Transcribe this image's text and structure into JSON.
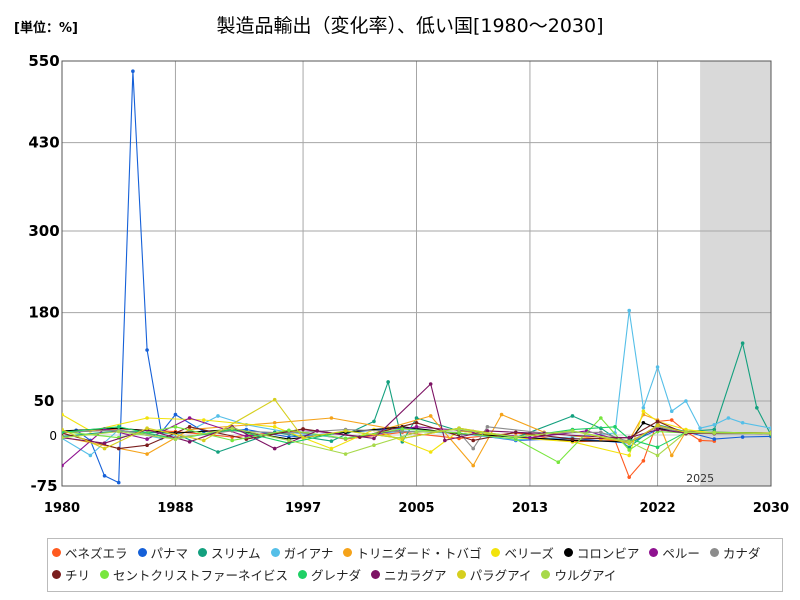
{
  "chart_data": {
    "type": "line",
    "title": "製造品輸出（変化率）、低い国[1980～2030]",
    "unit_label": "[単位：%]",
    "xlabel": "",
    "ylabel": "",
    "x_range": [
      1980,
      2030
    ],
    "ylim": [
      -75,
      550
    ],
    "y_ticks": [
      -75,
      0,
      50,
      180,
      300,
      430,
      550
    ],
    "y_tick_labels": [
      "-75",
      "0",
      "50",
      "180",
      "300",
      "430",
      "550"
    ],
    "x_ticks": [
      1980,
      1988,
      1997,
      2005,
      2013,
      2022,
      2030
    ],
    "x_tick_labels": [
      "1980",
      "1988",
      "1997",
      "2005",
      "2013",
      "2022",
      "2030"
    ],
    "forecast_start": 2025,
    "forecast_label": "2025",
    "grid": true,
    "legend_position": "bottom",
    "series": [
      {
        "name": "ベネズエラ",
        "color": "#ff5a1f",
        "points": [
          [
            1980,
            3
          ],
          [
            1984,
            9
          ],
          [
            1988,
            5
          ],
          [
            1992,
            -3
          ],
          [
            1996,
            6
          ],
          [
            2000,
            -6
          ],
          [
            2004,
            4
          ],
          [
            2008,
            -5
          ],
          [
            2012,
            3
          ],
          [
            2016,
            -10
          ],
          [
            2019,
            -8
          ],
          [
            2020,
            -62
          ],
          [
            2021,
            -38
          ],
          [
            2022,
            20
          ],
          [
            2023,
            22
          ],
          [
            2024,
            5
          ],
          [
            2025,
            -8
          ],
          [
            2026,
            -9
          ]
        ]
      },
      {
        "name": "パナマ",
        "color": "#1560d8",
        "points": [
          [
            1980,
            4
          ],
          [
            1981,
            7
          ],
          [
            1982,
            -8
          ],
          [
            1983,
            -60
          ],
          [
            1984,
            -70
          ],
          [
            1985,
            535
          ],
          [
            1986,
            125
          ],
          [
            1987,
            4
          ],
          [
            1988,
            30
          ],
          [
            1990,
            5
          ],
          [
            1993,
            8
          ],
          [
            1996,
            -3
          ],
          [
            2000,
            4
          ],
          [
            2004,
            10
          ],
          [
            2008,
            3
          ],
          [
            2012,
            -8
          ],
          [
            2016,
            -5
          ],
          [
            2020,
            -12
          ],
          [
            2022,
            8
          ],
          [
            2024,
            5
          ],
          [
            2026,
            -6
          ],
          [
            2028,
            -3
          ],
          [
            2030,
            -2
          ]
        ]
      },
      {
        "name": "スリナム",
        "color": "#13a07e",
        "points": [
          [
            1980,
            -2
          ],
          [
            1984,
            6
          ],
          [
            1988,
            2
          ],
          [
            1991,
            -25
          ],
          [
            1995,
            4
          ],
          [
            1999,
            -9
          ],
          [
            2002,
            20
          ],
          [
            2003,
            78
          ],
          [
            2004,
            -10
          ],
          [
            2005,
            25
          ],
          [
            2008,
            6
          ],
          [
            2012,
            -4
          ],
          [
            2016,
            28
          ],
          [
            2018,
            10
          ],
          [
            2020,
            -18
          ],
          [
            2022,
            15
          ],
          [
            2024,
            5
          ],
          [
            2026,
            8
          ],
          [
            2028,
            135
          ],
          [
            2029,
            40
          ],
          [
            2030,
            0
          ]
        ]
      },
      {
        "name": "ガイアナ",
        "color": "#55bfe8",
        "points": [
          [
            1980,
            -5
          ],
          [
            1982,
            -30
          ],
          [
            1984,
            8
          ],
          [
            1987,
            -5
          ],
          [
            1989,
            6
          ],
          [
            1991,
            28
          ],
          [
            1993,
            15
          ],
          [
            1996,
            4
          ],
          [
            2000,
            -5
          ],
          [
            2004,
            6
          ],
          [
            2008,
            2
          ],
          [
            2012,
            -7
          ],
          [
            2016,
            -3
          ],
          [
            2019,
            3
          ],
          [
            2020,
            183
          ],
          [
            2021,
            40
          ],
          [
            2022,
            100
          ],
          [
            2023,
            35
          ],
          [
            2024,
            50
          ],
          [
            2025,
            10
          ],
          [
            2026,
            15
          ],
          [
            2027,
            25
          ],
          [
            2028,
            18
          ],
          [
            2030,
            10
          ]
        ]
      },
      {
        "name": "トリニダード・トバゴ",
        "color": "#f5a31a",
        "points": [
          [
            1980,
            -3
          ],
          [
            1986,
            -28
          ],
          [
            1989,
            8
          ],
          [
            1995,
            18
          ],
          [
            1999,
            25
          ],
          [
            2003,
            10
          ],
          [
            2006,
            28
          ],
          [
            2009,
            -45
          ],
          [
            2011,
            30
          ],
          [
            2014,
            4
          ],
          [
            2018,
            -6
          ],
          [
            2020,
            -8
          ],
          [
            2021,
            30
          ],
          [
            2022,
            22
          ],
          [
            2023,
            -30
          ],
          [
            2024,
            5
          ],
          [
            2026,
            3
          ],
          [
            2030,
            2
          ]
        ]
      },
      {
        "name": "ベリーズ",
        "color": "#f2e30c",
        "points": [
          [
            1980,
            30
          ],
          [
            1982,
            6
          ],
          [
            1986,
            25
          ],
          [
            1990,
            22
          ],
          [
            1995,
            12
          ],
          [
            1999,
            -20
          ],
          [
            2002,
            8
          ],
          [
            2006,
            -25
          ],
          [
            2008,
            6
          ],
          [
            2012,
            -4
          ],
          [
            2016,
            -10
          ],
          [
            2020,
            -30
          ],
          [
            2021,
            35
          ],
          [
            2022,
            20
          ],
          [
            2024,
            8
          ],
          [
            2026,
            3
          ],
          [
            2030,
            2
          ]
        ]
      },
      {
        "name": "コロンビア",
        "color": "#000000",
        "points": [
          [
            1980,
            6
          ],
          [
            1984,
            10
          ],
          [
            1988,
            3
          ],
          [
            1992,
            8
          ],
          [
            1996,
            -6
          ],
          [
            2000,
            4
          ],
          [
            2004,
            12
          ],
          [
            2008,
            2
          ],
          [
            2012,
            -3
          ],
          [
            2016,
            -8
          ],
          [
            2020,
            -10
          ],
          [
            2021,
            18
          ],
          [
            2022,
            10
          ],
          [
            2024,
            3
          ],
          [
            2026,
            4
          ],
          [
            2030,
            3
          ]
        ]
      },
      {
        "name": "ペルー",
        "color": "#8f1290",
        "points": [
          [
            1980,
            -45
          ],
          [
            1983,
            9
          ],
          [
            1986,
            -6
          ],
          [
            1989,
            25
          ],
          [
            1993,
            -2
          ],
          [
            1997,
            8
          ],
          [
            2001,
            -3
          ],
          [
            2005,
            12
          ],
          [
            2009,
            5
          ],
          [
            2013,
            -4
          ],
          [
            2017,
            6
          ],
          [
            2020,
            -12
          ],
          [
            2022,
            14
          ],
          [
            2024,
            4
          ],
          [
            2026,
            3
          ],
          [
            2030,
            2
          ]
        ]
      },
      {
        "name": "カナダ",
        "color": "#8c8c8c",
        "points": [
          [
            1980,
            4
          ],
          [
            1984,
            7
          ],
          [
            1988,
            -4
          ],
          [
            1992,
            6
          ],
          [
            1996,
            3
          ],
          [
            2000,
            8
          ],
          [
            2004,
            5
          ],
          [
            2008,
            4
          ],
          [
            2009,
            -20
          ],
          [
            2010,
            12
          ],
          [
            2014,
            3
          ],
          [
            2018,
            4
          ],
          [
            2020,
            -10
          ],
          [
            2022,
            12
          ],
          [
            2024,
            2
          ],
          [
            2026,
            3
          ],
          [
            2030,
            3
          ]
        ]
      },
      {
        "name": "チリ",
        "color": "#7a1e1e",
        "points": [
          [
            1980,
            3
          ],
          [
            1984,
            -20
          ],
          [
            1986,
            -15
          ],
          [
            1989,
            12
          ],
          [
            1993,
            -6
          ],
          [
            1997,
            9
          ],
          [
            2001,
            -3
          ],
          [
            2005,
            18
          ],
          [
            2009,
            -8
          ],
          [
            2012,
            4
          ],
          [
            2016,
            -6
          ],
          [
            2020,
            -4
          ],
          [
            2022,
            20
          ],
          [
            2024,
            2
          ],
          [
            2026,
            3
          ],
          [
            2030,
            2
          ]
        ]
      },
      {
        "name": "セントクリストファーネイビス",
        "color": "#78e63e",
        "points": [
          [
            1980,
            5
          ],
          [
            1984,
            -4
          ],
          [
            1988,
            12
          ],
          [
            1992,
            -8
          ],
          [
            1996,
            7
          ],
          [
            2000,
            -5
          ],
          [
            2004,
            9
          ],
          [
            2008,
            3
          ],
          [
            2012,
            -6
          ],
          [
            2015,
            -40
          ],
          [
            2018,
            25
          ],
          [
            2020,
            -22
          ],
          [
            2022,
            5
          ],
          [
            2024,
            3
          ],
          [
            2026,
            4
          ],
          [
            2030,
            3
          ]
        ]
      },
      {
        "name": "グレナダ",
        "color": "#1fd065",
        "points": [
          [
            1980,
            4
          ],
          [
            1984,
            12
          ],
          [
            1988,
            -6
          ],
          [
            1992,
            8
          ],
          [
            1996,
            -12
          ],
          [
            2000,
            6
          ],
          [
            2004,
            -5
          ],
          [
            2008,
            10
          ],
          [
            2012,
            -4
          ],
          [
            2016,
            8
          ],
          [
            2019,
            12
          ],
          [
            2020,
            -6
          ],
          [
            2022,
            -18
          ],
          [
            2024,
            4
          ],
          [
            2026,
            2
          ],
          [
            2030,
            2
          ]
        ]
      },
      {
        "name": "ニカラグア",
        "color": "#7d1364",
        "points": [
          [
            1980,
            -4
          ],
          [
            1983,
            -12
          ],
          [
            1986,
            8
          ],
          [
            1989,
            -10
          ],
          [
            1992,
            12
          ],
          [
            1995,
            -20
          ],
          [
            1998,
            6
          ],
          [
            2002,
            -5
          ],
          [
            2006,
            75
          ],
          [
            2007,
            -8
          ],
          [
            2010,
            6
          ],
          [
            2014,
            2
          ],
          [
            2018,
            -3
          ],
          [
            2020,
            -4
          ],
          [
            2022,
            8
          ],
          [
            2024,
            3
          ],
          [
            2026,
            2
          ],
          [
            2030,
            2
          ]
        ]
      },
      {
        "name": "パラグアイ",
        "color": "#d6cf1e",
        "points": [
          [
            1980,
            8
          ],
          [
            1983,
            -20
          ],
          [
            1986,
            10
          ],
          [
            1990,
            -8
          ],
          [
            1995,
            52
          ],
          [
            1997,
            -4
          ],
          [
            2000,
            6
          ],
          [
            2004,
            -5
          ],
          [
            2008,
            10
          ],
          [
            2012,
            -3
          ],
          [
            2016,
            6
          ],
          [
            2020,
            -12
          ],
          [
            2022,
            14
          ],
          [
            2024,
            4
          ],
          [
            2026,
            3
          ],
          [
            2030,
            3
          ]
        ]
      },
      {
        "name": "ウルグアイ",
        "color": "#a7d94a",
        "points": [
          [
            1980,
            -4
          ],
          [
            1984,
            5
          ],
          [
            1988,
            -6
          ],
          [
            1992,
            10
          ],
          [
            1996,
            -8
          ],
          [
            2000,
            -28
          ],
          [
            2002,
            -15
          ],
          [
            2005,
            4
          ],
          [
            2008,
            8
          ],
          [
            2012,
            -3
          ],
          [
            2016,
            6
          ],
          [
            2020,
            -10
          ],
          [
            2022,
            -30
          ],
          [
            2024,
            4
          ],
          [
            2026,
            3
          ],
          [
            2030,
            2
          ]
        ]
      }
    ]
  }
}
